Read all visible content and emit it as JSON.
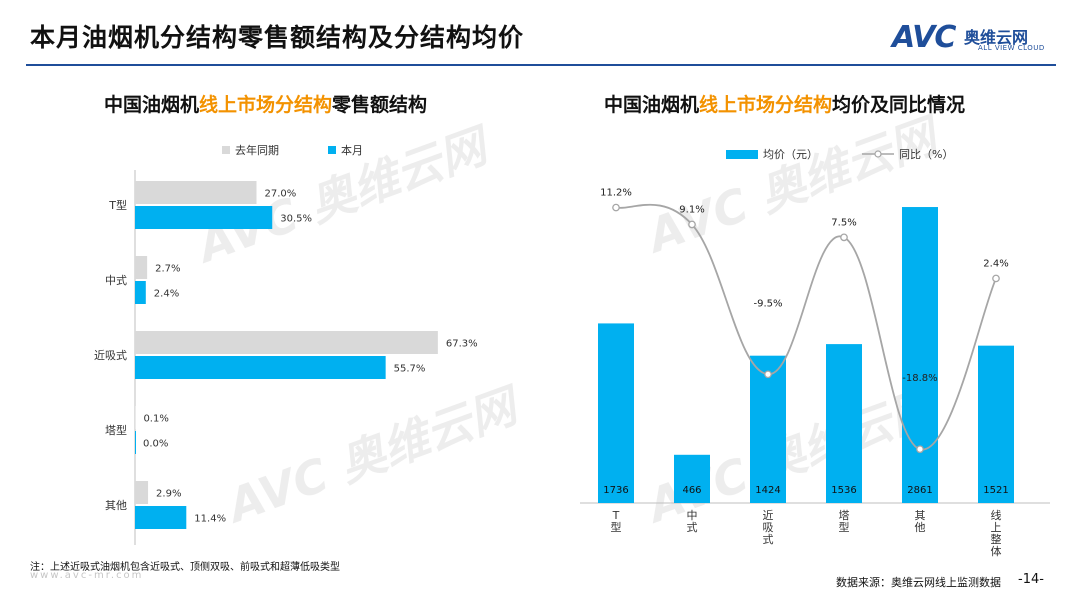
{
  "page": {
    "title": "本月油烟机分结构零售额结构及分结构均价",
    "logo_mark": "AVC",
    "logo_cn": "奥维云网",
    "logo_en": "ALL VIEW CLOUD",
    "note": "注：上述近吸式油烟机包含近吸式、顶侧双吸、前吸式和超薄低吸类型",
    "source": "数据来源：奥维云网线上监测数据",
    "page_number": "-14-",
    "watermark_url": "www.avc-mr.com",
    "watermark_text": "AVC 奥维云网"
  },
  "left_chart": {
    "title_pre": "中国油烟机",
    "title_hl": "线上市场分结构",
    "title_post": "零售额结构"
  },
  "right_chart": {
    "title_pre": "中国油烟机",
    "title_hl": "线上市场分结构",
    "title_post": "均价及同比情况"
  },
  "chart_data": [
    {
      "type": "bar",
      "orientation": "horizontal",
      "title": "中国油烟机线上市场分结构零售额结构",
      "categories": [
        "T型",
        "中式",
        "近吸式",
        "塔型",
        "其他"
      ],
      "series": [
        {
          "name": "去年同期",
          "values": [
            27.0,
            2.7,
            67.3,
            0.1,
            2.9
          ],
          "labels": [
            "27.0%",
            "2.7%",
            "67.3%",
            "0.1%",
            "2.9%"
          ],
          "color": "#d9d9d9"
        },
        {
          "name": "本月",
          "values": [
            30.5,
            2.4,
            55.7,
            0.0,
            11.4
          ],
          "labels": [
            "30.5%",
            "2.4%",
            "55.7%",
            "0.0%",
            "11.4%"
          ],
          "color": "#00b0f0"
        }
      ],
      "xlim": [
        0,
        70
      ],
      "legend": "top"
    },
    {
      "type": "bar+line",
      "title": "中国油烟机线上市场分结构均价及同比情况",
      "categories": [
        "T型",
        "中式",
        "近吸式",
        "塔型",
        "其他",
        "线上整体"
      ],
      "series": [
        {
          "name": "均价（元）",
          "type": "bar",
          "values": [
            1736,
            466,
            1424,
            1536,
            2861,
            1521
          ],
          "labels": [
            "1736",
            "466",
            "1424",
            "1536",
            "2861",
            "1521"
          ],
          "color": "#00b0f0"
        },
        {
          "name": "同比（%）",
          "type": "line",
          "values": [
            11.2,
            9.1,
            -9.5,
            7.5,
            -18.8,
            2.4
          ],
          "labels": [
            "11.2%",
            "9.1%",
            "-9.5%",
            "7.5%",
            "-18.8%",
            "2.4%"
          ],
          "color": "#a6a6a6"
        }
      ],
      "y_bar_lim": [
        0,
        2900
      ],
      "y_line_lim": [
        -22,
        14
      ],
      "legend": "top"
    }
  ]
}
